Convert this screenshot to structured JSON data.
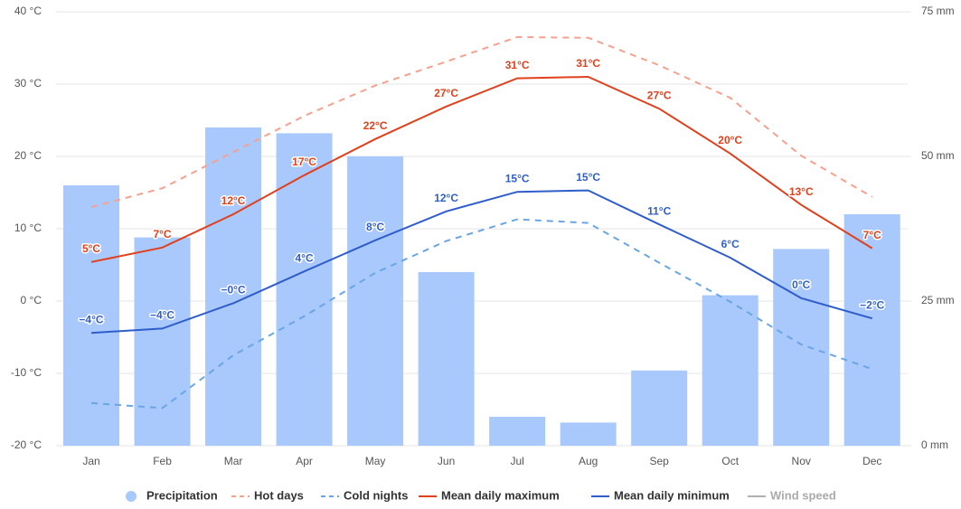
{
  "chart_data": {
    "type": "bar",
    "categories": [
      "Jan",
      "Feb",
      "Mar",
      "Apr",
      "May",
      "Jun",
      "Jul",
      "Aug",
      "Sep",
      "Oct",
      "Nov",
      "Dec"
    ],
    "ylim": [
      -20,
      40
    ],
    "yticks": [
      {
        "value": -20,
        "label": "-20 °C"
      },
      {
        "value": -10,
        "label": "-10 °C"
      },
      {
        "value": 0,
        "label": "0 °C"
      },
      {
        "value": 10,
        "label": "10 °C"
      },
      {
        "value": 20,
        "label": "20 °C"
      },
      {
        "value": 30,
        "label": "30 °C"
      },
      {
        "value": 40,
        "label": "40 °C"
      }
    ],
    "y2lim": [
      0,
      75
    ],
    "y2ticks": [
      {
        "value": 0,
        "label": "0 mm"
      },
      {
        "value": 25,
        "label": "25 mm"
      },
      {
        "value": 50,
        "label": "50 mm"
      },
      {
        "value": 75,
        "label": "75 mm"
      }
    ],
    "grid": true,
    "series": [
      {
        "name": "Precipitation",
        "type": "bar",
        "axis": "y2",
        "color": "#a9c8fb",
        "values": [
          45,
          36,
          55,
          54,
          50,
          30,
          5,
          4,
          13,
          26,
          34,
          40
        ]
      },
      {
        "name": "Hot days",
        "type": "line",
        "line_style": "dashed",
        "color": "#f7a08e",
        "values": [
          13,
          15.6,
          20.6,
          25.6,
          29.8,
          33.1,
          36.5,
          36.4,
          32.6,
          28.1,
          20.1,
          14.4
        ]
      },
      {
        "name": "Cold nights",
        "type": "line",
        "line_style": "dashed",
        "color": "#6aa6e4",
        "values": [
          -14.1,
          -14.8,
          -7.5,
          -2.1,
          3.9,
          8.3,
          11.3,
          10.8,
          5.3,
          -0.1,
          -6,
          -9.4
        ]
      },
      {
        "name": "Mean daily maximum",
        "type": "line",
        "line_style": "solid",
        "color": "#e0401c",
        "values": [
          5.4,
          7.4,
          12,
          17.4,
          22.4,
          26.9,
          30.8,
          31,
          26.6,
          20.4,
          13.3,
          7.3
        ],
        "value_labels": [
          "5°C",
          "7°C",
          "12°C",
          "17°C",
          "22°C",
          "27°C",
          "31°C",
          "31°C",
          "27°C",
          "20°C",
          "13°C",
          "7°C"
        ]
      },
      {
        "name": "Mean daily minimum",
        "type": "line",
        "line_style": "solid",
        "color": "#2f5ecb",
        "values": [
          -4.4,
          -3.8,
          -0.3,
          4.1,
          8.4,
          12.4,
          15.1,
          15.3,
          10.6,
          6,
          0.4,
          -2.4
        ],
        "value_labels": [
          "−4°C",
          "−4°C",
          "−0°C",
          "4°C",
          "8°C",
          "12°C",
          "15°C",
          "15°C",
          "11°C",
          "6°C",
          "0°C",
          "−2°C"
        ]
      },
      {
        "name": "Wind speed",
        "type": "line",
        "line_style": "solid",
        "color": "#b0b0b0",
        "values": [
          null,
          null,
          null,
          null,
          null,
          null,
          null,
          null,
          null,
          null,
          null,
          null
        ]
      }
    ]
  }
}
